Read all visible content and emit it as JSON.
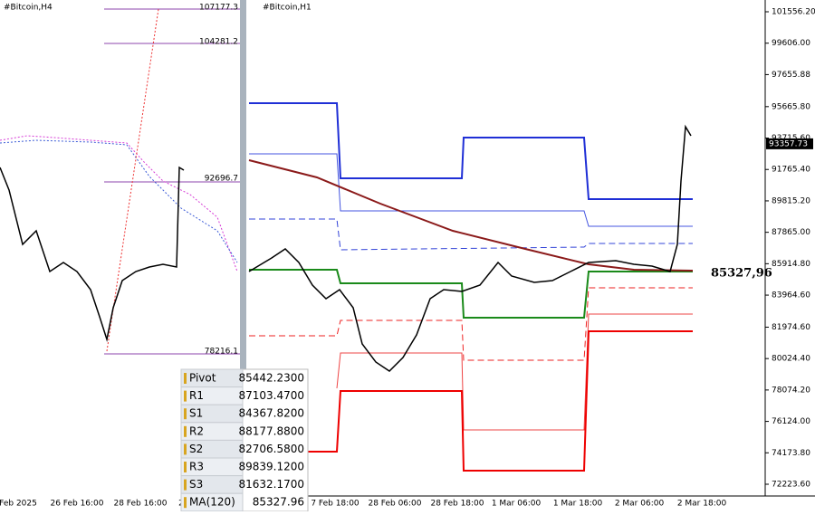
{
  "left_panel": {
    "title": "#Bitcoin,H4",
    "levels": [
      "107177.3",
      "104281.2",
      "92696.7",
      "78216.1"
    ],
    "x_labels": [
      "Feb 2025",
      "26 Feb 16:00",
      "28 Feb 16:00",
      "2"
    ]
  },
  "right_panel": {
    "title": "#Bitcoin,H1",
    "yticks": [
      101556.2,
      99606.0,
      97655.88,
      95665.8,
      93715.6,
      91765.4,
      89815.2,
      87865.0,
      85914.8,
      83964.6,
      81974.6,
      80024.4,
      78074.2,
      76124.0,
      74173.8,
      72223.6
    ],
    "ytick_labels": [
      "101556.20",
      "99606.00",
      "97655.88",
      "95665.80",
      "93715.60",
      "91765.40",
      "89815.20",
      "87865.00",
      "85914.80",
      "83964.60",
      "81974.60",
      "80024.40",
      "78074.20",
      "76124.00",
      "74173.80",
      "72223.60"
    ],
    "current_price": "93357.73",
    "ma_label": "85327,96",
    "x_labels": [
      "7 Feb 18:00",
      "28 Feb 06:00",
      "28 Feb 18:00",
      "1 Mar 06:00",
      "1 Mar 18:00",
      "2 Mar 06:00",
      "2 Mar 18:00"
    ]
  },
  "table": {
    "rows": [
      [
        "Pivot",
        "85442.2300"
      ],
      [
        "R1",
        "87103.4700"
      ],
      [
        "S1",
        "84367.8200"
      ],
      [
        "R2",
        "88177.8800"
      ],
      [
        "S2",
        "82706.5800"
      ],
      [
        "R3",
        "89839.1200"
      ],
      [
        "S3",
        "81632.1700"
      ],
      [
        "MA(120)",
        "85327.96"
      ]
    ]
  }
}
